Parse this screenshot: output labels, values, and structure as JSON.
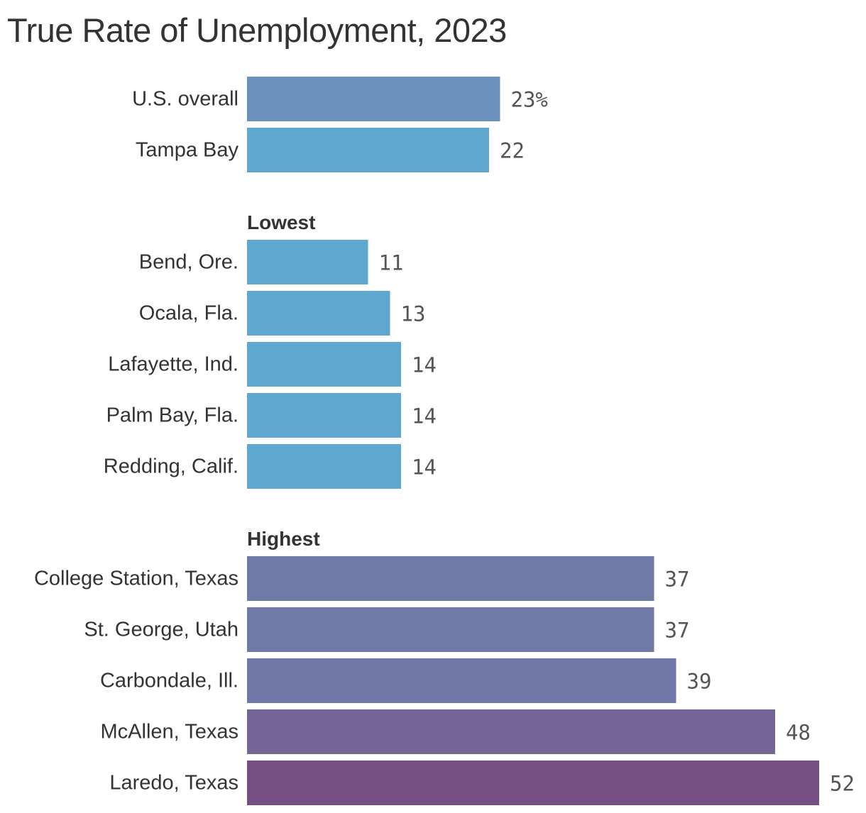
{
  "chart_data": {
    "type": "bar",
    "orientation": "horizontal",
    "title": "True Rate of Unemployment, 2023",
    "xlabel": "",
    "ylabel": "",
    "xlim": [
      0,
      52
    ],
    "grid": false,
    "value_unit_suffix_first_row": "%",
    "groups": [
      {
        "label": "",
        "bars": [
          {
            "category": "U.S. overall",
            "value": 23,
            "value_label": "23%",
            "color": "#6b91bc"
          },
          {
            "category": "Tampa Bay",
            "value": 22,
            "value_label": "22",
            "color": "#5ea8d0"
          }
        ]
      },
      {
        "label": "Lowest",
        "bars": [
          {
            "category": "Bend, Ore.",
            "value": 11,
            "value_label": "11",
            "color": "#5ea8d0"
          },
          {
            "category": "Ocala, Fla.",
            "value": 13,
            "value_label": "13",
            "color": "#5ea8d0"
          },
          {
            "category": "Lafayette, Ind.",
            "value": 14,
            "value_label": "14",
            "color": "#5ea8d0"
          },
          {
            "category": "Palm Bay, Fla.",
            "value": 14,
            "value_label": "14",
            "color": "#5ea8d0"
          },
          {
            "category": "Redding, Calif.",
            "value": 14,
            "value_label": "14",
            "color": "#5ea8d0"
          }
        ]
      },
      {
        "label": "Highest",
        "bars": [
          {
            "category": "College Station, Texas",
            "value": 37,
            "value_label": "37",
            "color": "#707aa7"
          },
          {
            "category": "St. George, Utah",
            "value": 37,
            "value_label": "37",
            "color": "#707aa7"
          },
          {
            "category": "Carbondale, Ill.",
            "value": 39,
            "value_label": "39",
            "color": "#6f78a6"
          },
          {
            "category": "McAllen, Texas",
            "value": 48,
            "value_label": "48",
            "color": "#736596"
          },
          {
            "category": "Laredo, Texas",
            "value": 52,
            "value_label": "52",
            "color": "#764f82"
          }
        ]
      }
    ]
  }
}
